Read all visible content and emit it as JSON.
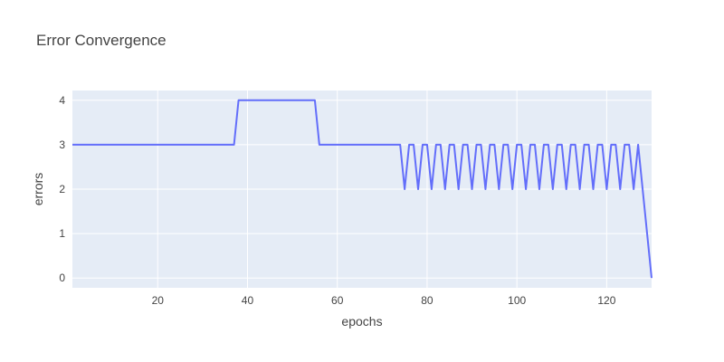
{
  "chart_data": {
    "type": "line",
    "title": "Error Convergence",
    "xlabel": "epochs",
    "ylabel": "errors",
    "xlim": [
      1,
      130
    ],
    "ylim": [
      -0.22,
      4.22
    ],
    "x_ticks": [
      20,
      40,
      60,
      80,
      100,
      120
    ],
    "y_ticks": [
      0,
      1,
      2,
      3,
      4
    ],
    "grid": true,
    "colors": {
      "plot_bg": "#e5ecf6",
      "grid": "#ffffff",
      "line": "#636efa",
      "text": "#444444"
    },
    "series": [
      {
        "x": [
          1,
          2,
          3,
          4,
          5,
          6,
          7,
          8,
          9,
          10,
          11,
          12,
          13,
          14,
          15,
          16,
          17,
          18,
          19,
          20,
          21,
          22,
          23,
          24,
          25,
          26,
          27,
          28,
          29,
          30,
          31,
          32,
          33,
          34,
          35,
          36,
          37,
          38,
          39,
          40,
          41,
          42,
          43,
          44,
          45,
          46,
          47,
          48,
          49,
          50,
          51,
          52,
          53,
          54,
          55,
          56,
          57,
          58,
          59,
          60,
          61,
          62,
          63,
          64,
          65,
          66,
          67,
          68,
          69,
          70,
          71,
          72,
          73,
          74,
          75,
          76,
          77,
          78,
          79,
          80,
          81,
          82,
          83,
          84,
          85,
          86,
          87,
          88,
          89,
          90,
          91,
          92,
          93,
          94,
          95,
          96,
          97,
          98,
          99,
          100,
          101,
          102,
          103,
          104,
          105,
          106,
          107,
          108,
          109,
          110,
          111,
          112,
          113,
          114,
          115,
          116,
          117,
          118,
          119,
          120,
          121,
          122,
          123,
          124,
          125,
          126,
          127,
          128,
          129,
          130
        ],
        "y": [
          3,
          3,
          3,
          3,
          3,
          3,
          3,
          3,
          3,
          3,
          3,
          3,
          3,
          3,
          3,
          3,
          3,
          3,
          3,
          3,
          3,
          3,
          3,
          3,
          3,
          3,
          3,
          3,
          3,
          3,
          3,
          3,
          3,
          3,
          3,
          3,
          3,
          4,
          4,
          4,
          4,
          4,
          4,
          4,
          4,
          4,
          4,
          4,
          4,
          4,
          4,
          4,
          4,
          4,
          4,
          3,
          3,
          3,
          3,
          3,
          3,
          3,
          3,
          3,
          3,
          3,
          3,
          3,
          3,
          3,
          3,
          3,
          3,
          3,
          2,
          3,
          3,
          2,
          3,
          3,
          2,
          3,
          3,
          2,
          3,
          3,
          2,
          3,
          3,
          2,
          3,
          3,
          2,
          3,
          3,
          2,
          3,
          3,
          2,
          3,
          3,
          2,
          3,
          3,
          2,
          3,
          3,
          2,
          3,
          3,
          2,
          3,
          3,
          2,
          3,
          3,
          2,
          3,
          3,
          2,
          3,
          3,
          2,
          3,
          3,
          2,
          3,
          2,
          1,
          0
        ]
      }
    ]
  }
}
